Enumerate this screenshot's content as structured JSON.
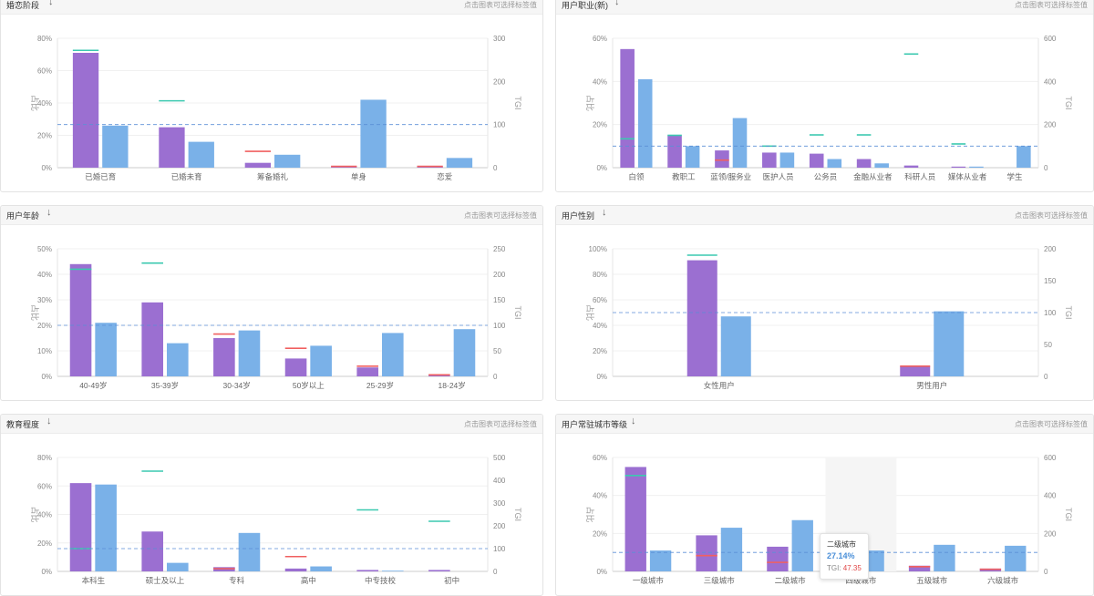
{
  "hint": "点击图表可选择标签值",
  "arrow_glyph": "↓",
  "colors": {
    "purple": "#9b6fd1",
    "blue": "#7ab1e8",
    "tgi_high": "#3cc9b0",
    "tgi_low": "#f06060",
    "baseline": "#5b8fd6"
  },
  "panels": [
    {
      "title": "婚恋阶段",
      "y_label": "占比",
      "y2_label": "TGI",
      "chart_data": {
        "type": "bar",
        "categories": [
          "已婚已育",
          "已婚未育",
          "筹备婚礼",
          "单身",
          "恋爱"
        ],
        "series": [
          {
            "values": [
              71,
              25,
              3,
              0.5,
              0.5
            ]
          },
          {
            "values": [
              26,
              16,
              8,
              42,
              6
            ]
          }
        ],
        "tgi": [
          272,
          155,
          38,
          3,
          3
        ],
        "baseline": 100,
        "ylim": [
          0,
          80
        ],
        "y2lim": [
          0,
          300
        ],
        "y_ticks": [
          "0%",
          "20%",
          "40%",
          "60%",
          "80%"
        ],
        "y2_ticks": [
          "0",
          "100",
          "200",
          "300"
        ]
      }
    },
    {
      "title": "用户职业(新)",
      "y_label": "占比",
      "y2_label": "TGI",
      "chart_data": {
        "type": "bar",
        "categories": [
          "白领",
          "教职工",
          "蓝领/服务业",
          "医护人员",
          "公务员",
          "金融从业者",
          "科研人员",
          "媒体从业者",
          "学生"
        ],
        "series": [
          {
            "values": [
              55,
              15,
              8,
              7,
              6.5,
              4,
              1,
              0.5,
              0
            ]
          },
          {
            "values": [
              41,
              10,
              23,
              7,
              4,
              2,
              0,
              0.5,
              10
            ]
          }
        ],
        "tgi": [
          134,
          150,
          35,
          100,
          152,
          152,
          527,
          110,
          0
        ],
        "baseline": 100,
        "ylim": [
          0,
          60
        ],
        "y2lim": [
          0,
          600
        ],
        "y_ticks": [
          "0%",
          "20%",
          "40%",
          "60%"
        ],
        "y2_ticks": [
          "0",
          "200",
          "400",
          "600"
        ]
      }
    },
    {
      "title": "用户年龄",
      "y_label": "占比",
      "y2_label": "TGI",
      "chart_data": {
        "type": "bar",
        "categories": [
          "40-49岁",
          "35-39岁",
          "30-34岁",
          "50岁以上",
          "25-29岁",
          "18-24岁"
        ],
        "series": [
          {
            "values": [
              44,
              29,
              15,
              7,
              3.5,
              0.5
            ]
          },
          {
            "values": [
              21,
              13,
              18,
              12,
              17,
              18.5
            ]
          }
        ],
        "tgi": [
          210,
          222,
          83,
          55,
          20,
          3
        ],
        "baseline": 100,
        "ylim": [
          0,
          50
        ],
        "y2lim": [
          0,
          250
        ],
        "y_ticks": [
          "0%",
          "10%",
          "20%",
          "30%",
          "40%",
          "50%"
        ],
        "y2_ticks": [
          "0",
          "50",
          "100",
          "150",
          "200",
          "250"
        ]
      }
    },
    {
      "title": "用户性别",
      "y_label": "占比",
      "y2_label": "TGI",
      "chart_data": {
        "type": "bar",
        "categories": [
          "女性用户",
          "男性用户"
        ],
        "series": [
          {
            "values": [
              91,
              8
            ]
          },
          {
            "values": [
              47,
              51
            ]
          }
        ],
        "tgi": [
          190,
          16
        ],
        "baseline": 100,
        "ylim": [
          0,
          100
        ],
        "y2lim": [
          0,
          200
        ],
        "y_ticks": [
          "0%",
          "20%",
          "40%",
          "60%",
          "80%",
          "100%"
        ],
        "y2_ticks": [
          "0",
          "50",
          "100",
          "150",
          "200"
        ]
      }
    },
    {
      "title": "教育程度",
      "y_label": "占比",
      "y2_label": "TGI",
      "chart_data": {
        "type": "bar",
        "categories": [
          "本科生",
          "硕士及以上",
          "专科",
          "高中",
          "中专技校",
          "初中"
        ],
        "series": [
          {
            "values": [
              62,
              28,
              3,
              2,
              1,
              1
            ]
          },
          {
            "values": [
              61,
              6,
              27,
              3.5,
              0.5,
              0
            ]
          }
        ],
        "tgi": [
          100,
          440,
          12,
          65,
          270,
          220
        ],
        "baseline": 100,
        "ylim": [
          0,
          80
        ],
        "y2lim": [
          0,
          500
        ],
        "y_ticks": [
          "0%",
          "20%",
          "40%",
          "60%",
          "80%"
        ],
        "y2_ticks": [
          "0",
          "100",
          "200",
          "300",
          "400",
          "500"
        ]
      }
    },
    {
      "title": "用户常驻城市等级",
      "y_label": "占比",
      "y2_label": "TGI",
      "chart_data": {
        "type": "bar",
        "categories": [
          "一级城市",
          "三级城市",
          "二级城市",
          "四级城市",
          "五级城市",
          "六级城市"
        ],
        "series": [
          {
            "values": [
              55,
              19,
              13,
              0,
              3,
              1.5
            ]
          },
          {
            "values": [
              11,
              23,
              27,
              11,
              14,
              13.5
            ]
          }
        ],
        "tgi": [
          505,
          83,
          47.35,
          0,
          25,
          11
        ],
        "baseline": 100,
        "ylim": [
          0,
          60
        ],
        "y2lim": [
          0,
          600
        ],
        "y_ticks": [
          "0%",
          "20%",
          "40%",
          "60%"
        ],
        "y2_ticks": [
          "0",
          "200",
          "400",
          "600"
        ],
        "highlight_index": 3,
        "tooltip": {
          "category": "二级城市",
          "pct": "27.14%",
          "tgi_label": "TGI:",
          "tgi_value": "47.35"
        }
      }
    }
  ]
}
